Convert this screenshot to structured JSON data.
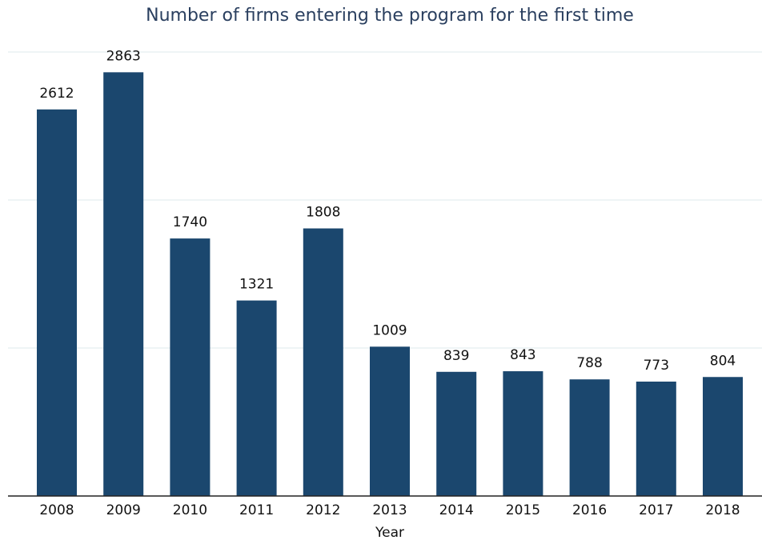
{
  "chart_data": {
    "type": "bar",
    "title": "Number of firms entering the program for the first time",
    "x_label": "Year",
    "categories": [
      "2008",
      "2009",
      "2010",
      "2011",
      "2012",
      "2013",
      "2014",
      "2015",
      "2016",
      "2017",
      "2018"
    ],
    "values": [
      2612,
      2863,
      1740,
      1321,
      1808,
      1009,
      839,
      843,
      788,
      773,
      804
    ],
    "color": "#1b476e",
    "ylim": [
      0,
      3000
    ],
    "yticks": [
      0,
      1000,
      2000,
      3000
    ],
    "grid": true
  }
}
